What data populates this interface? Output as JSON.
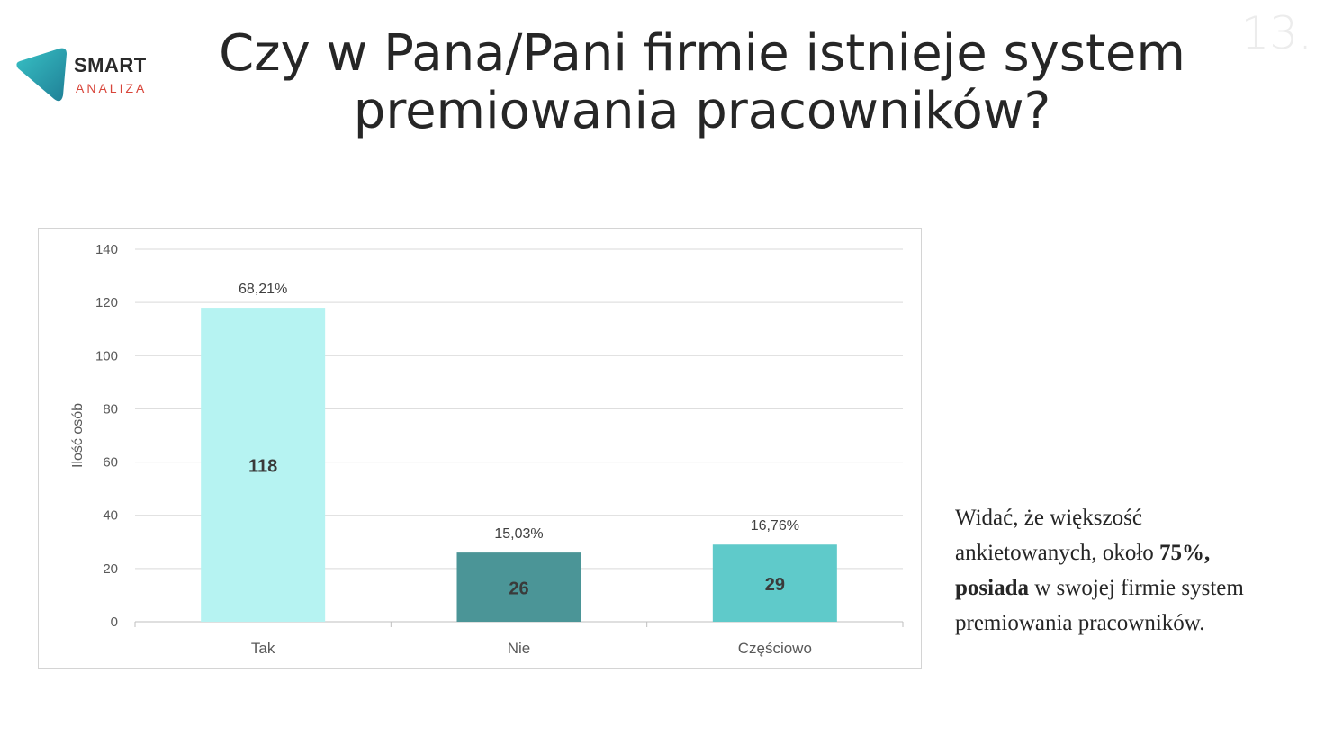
{
  "logo": {
    "line1": "SMART",
    "line2": "ANALIZA",
    "colors": {
      "teal": "#2aa8b5",
      "red": "#d8453a"
    }
  },
  "page_number": "13.",
  "title": "Czy w Pana/Pani firmie istnieje system premiowania pracowników?",
  "chart_data": {
    "type": "bar",
    "categories": [
      "Tak",
      "Nie",
      "Częściowo"
    ],
    "values": [
      118,
      26,
      29
    ],
    "percent_labels": [
      "68,21%",
      "15,03%",
      "16,76%"
    ],
    "colors": [
      "#b6f3f2",
      "#4b9597",
      "#5fcaca"
    ],
    "ylabel": "Ilość osób",
    "ylim": [
      0,
      140
    ],
    "yticks": [
      0,
      20,
      40,
      60,
      80,
      100,
      120,
      140
    ],
    "grid": true
  },
  "description": {
    "part1": "Widać, że większość ankietowanych, około ",
    "bold1": "75%, posiada",
    "part2": " w swojej firmie system premiowania pracowników."
  }
}
